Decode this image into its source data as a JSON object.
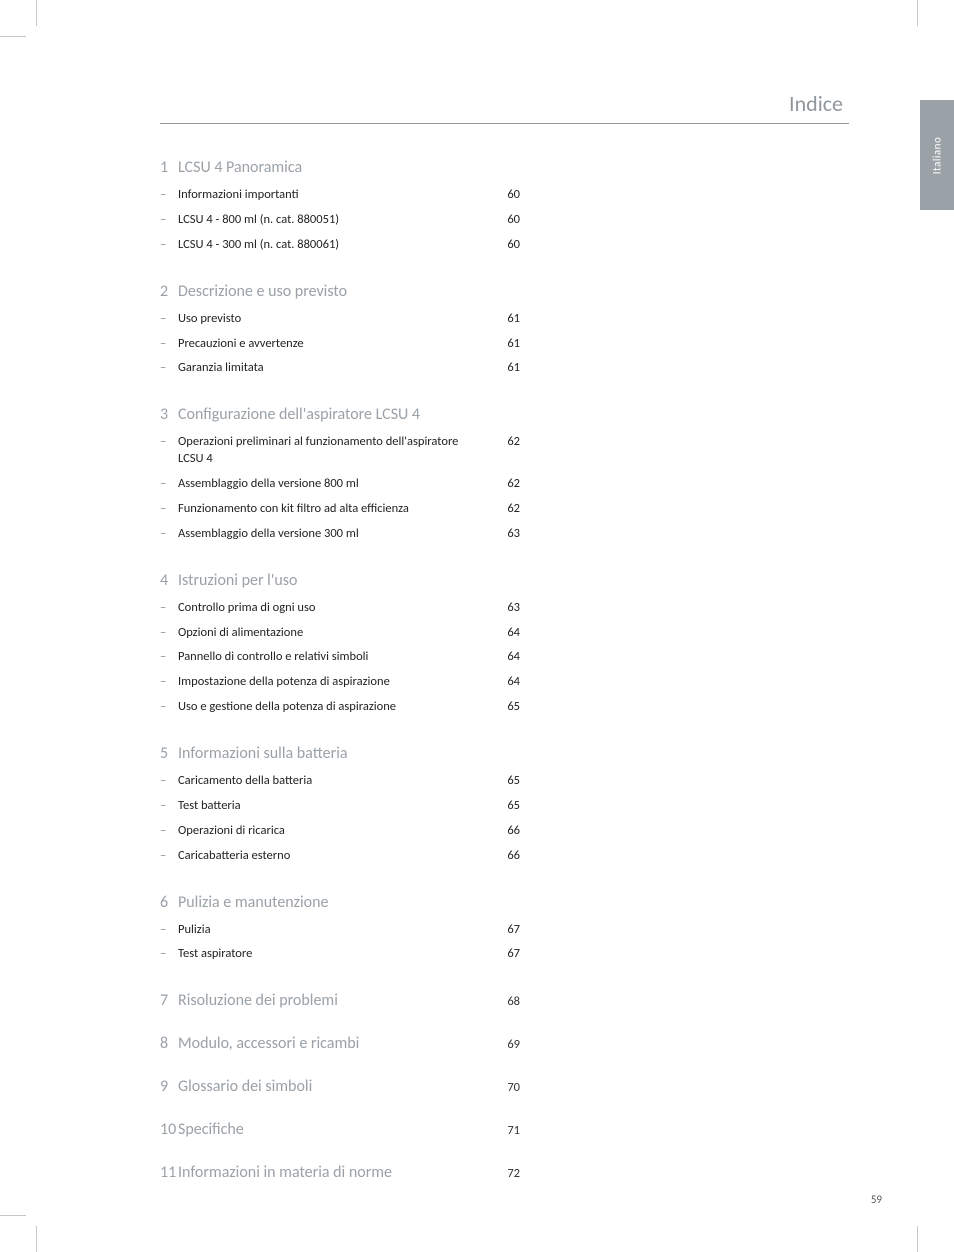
{
  "language_tab": "Italiano",
  "header_title": "Indice",
  "page_number": "59",
  "sections": [
    {
      "num": "1",
      "title": "LCSU 4 Panoramica",
      "page": "",
      "items": [
        {
          "label": "Informazioni importanti",
          "page": "60"
        },
        {
          "label": "LCSU 4 - 800 ml (n. cat. 880051)",
          "page": "60"
        },
        {
          "label": "LCSU 4 - 300 ml (n. cat. 880061)",
          "page": "60"
        }
      ]
    },
    {
      "num": "2",
      "title": "Descrizione e uso previsto",
      "page": "",
      "items": [
        {
          "label": "Uso previsto",
          "page": "61"
        },
        {
          "label": "Precauzioni e avvertenze",
          "page": "61"
        },
        {
          "label": "Garanzia limitata",
          "page": "61"
        }
      ]
    },
    {
      "num": "3",
      "title": "Configurazione dell'aspiratore LCSU 4",
      "page": "",
      "items": [
        {
          "label": "Operazioni preliminari al funzionamento dell'aspiratore LCSU 4",
          "page": "62"
        },
        {
          "label": "Assemblaggio della versione 800 ml",
          "page": "62"
        },
        {
          "label": "Funzionamento con kit filtro ad alta efficienza",
          "page": "62"
        },
        {
          "label": "Assemblaggio della versione 300 ml",
          "page": "63"
        }
      ]
    },
    {
      "num": "4",
      "title": "Istruzioni per l'uso",
      "page": "",
      "items": [
        {
          "label": "Controllo prima di ogni uso",
          "page": "63"
        },
        {
          "label": "Opzioni di alimentazione",
          "page": "64"
        },
        {
          "label": "Pannello di controllo e relativi simboli",
          "page": "64"
        },
        {
          "label": "Impostazione della potenza di aspirazione",
          "page": "64"
        },
        {
          "label": "Uso e gestione della potenza di aspirazione",
          "page": "65"
        }
      ]
    },
    {
      "num": "5",
      "title": "Informazioni sulla batteria",
      "page": "",
      "items": [
        {
          "label": "Caricamento della batteria",
          "page": "65"
        },
        {
          "label": "Test batteria",
          "page": "65"
        },
        {
          "label": "Operazioni di ricarica",
          "page": "66"
        },
        {
          "label": "Caricabatteria esterno",
          "page": "66"
        }
      ]
    },
    {
      "num": "6",
      "title": "Pulizia e manutenzione",
      "page": "",
      "items": [
        {
          "label": "Pulizia",
          "page": "67"
        },
        {
          "label": "Test aspiratore",
          "page": "67"
        }
      ]
    },
    {
      "num": "7",
      "title": "Risoluzione dei problemi",
      "page": "68",
      "items": []
    },
    {
      "num": "8",
      "title": "Modulo, accessori e ricambi",
      "page": "69",
      "items": []
    },
    {
      "num": "9",
      "title": "Glossario dei simboli",
      "page": "70",
      "items": []
    },
    {
      "num": "10",
      "title": "Specifiche",
      "page": "71",
      "items": []
    },
    {
      "num": "11",
      "title": "Informazioni in materia di norme",
      "page": "72",
      "items": []
    }
  ]
}
